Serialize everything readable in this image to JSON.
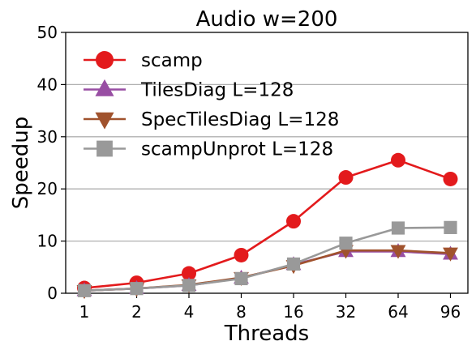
{
  "chart_data": {
    "type": "line",
    "title": "Audio w=200",
    "xlabel": "Threads",
    "ylabel": "Speedup",
    "categories": [
      "1",
      "2",
      "4",
      "8",
      "16",
      "32",
      "64",
      "96"
    ],
    "ylim": [
      0,
      50
    ],
    "yticks": [
      0,
      10,
      20,
      30,
      40,
      50
    ],
    "grid": "horizontal",
    "legend_position": "top-left",
    "series": [
      {
        "name": "scamp",
        "color": "#e31a1c",
        "marker": "circle",
        "values": [
          1.0,
          2.0,
          3.8,
          7.3,
          13.8,
          22.2,
          25.5,
          21.9
        ]
      },
      {
        "name": "TilesDiag L=128",
        "color": "#984ea3",
        "marker": "triangle-up",
        "values": [
          0.5,
          0.9,
          1.5,
          2.9,
          5.5,
          8.0,
          8.0,
          7.5
        ]
      },
      {
        "name": "SpecTilesDiag L=128",
        "color": "#a0522d",
        "marker": "triangle-down",
        "values": [
          0.5,
          0.9,
          1.6,
          3.0,
          5.3,
          8.2,
          8.2,
          7.7
        ]
      },
      {
        "name": "scampUnprot L=128",
        "color": "#999999",
        "marker": "square",
        "values": [
          0.5,
          0.9,
          1.5,
          2.8,
          5.6,
          9.6,
          12.5,
          12.6
        ]
      }
    ]
  }
}
